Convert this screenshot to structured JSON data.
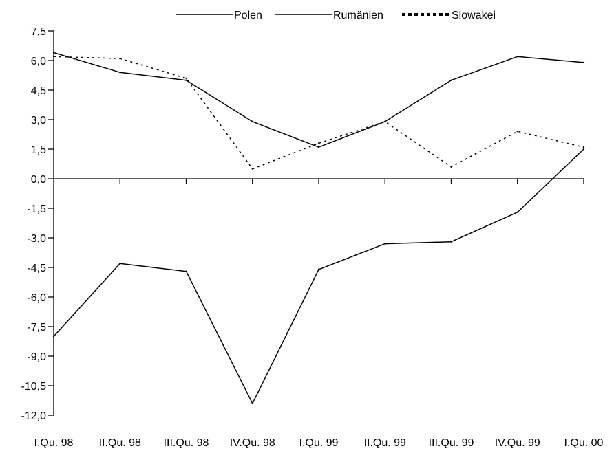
{
  "chart_data": {
    "type": "line",
    "title": "",
    "xlabel": "",
    "ylabel": "",
    "categories": [
      "I.Qu. 98",
      "II.Qu. 98",
      "III.Qu. 98",
      "IV.Qu. 98",
      "I.Qu. 99",
      "II.Qu. 99",
      "III.Qu. 99",
      "IV.Qu. 99",
      "I.Qu. 00"
    ],
    "ylim": [
      -12.0,
      7.5
    ],
    "yticks": [
      7.5,
      6.0,
      4.5,
      3.0,
      1.5,
      0.0,
      -1.5,
      -3.0,
      -4.5,
      -6.0,
      -7.5,
      -9.0,
      -10.5,
      -12.0
    ],
    "ytick_labels": [
      "7,5",
      "6,0",
      "4,5",
      "3,0",
      "1,5",
      "0,0",
      "-1,5",
      "-3,0",
      "-4,5",
      "-6,0",
      "-7,5",
      "-9,0",
      "-10,5",
      "-12,0"
    ],
    "grid": false,
    "legend_position": "top",
    "series": [
      {
        "name": "Polen",
        "style": "solid",
        "color": "#000000",
        "values": [
          6.4,
          5.4,
          5.0,
          2.9,
          1.6,
          2.9,
          5.0,
          6.2,
          5.9
        ]
      },
      {
        "name": "Rumänien",
        "style": "solid",
        "color": "#000000",
        "values": [
          -8.0,
          -4.3,
          -4.7,
          -11.4,
          -4.6,
          -3.3,
          -3.2,
          -1.7,
          1.5
        ]
      },
      {
        "name": "Slowakei",
        "style": "dotted",
        "color": "#000000",
        "values": [
          6.2,
          6.1,
          5.1,
          0.5,
          1.8,
          2.9,
          0.6,
          2.4,
          1.6
        ]
      }
    ]
  }
}
